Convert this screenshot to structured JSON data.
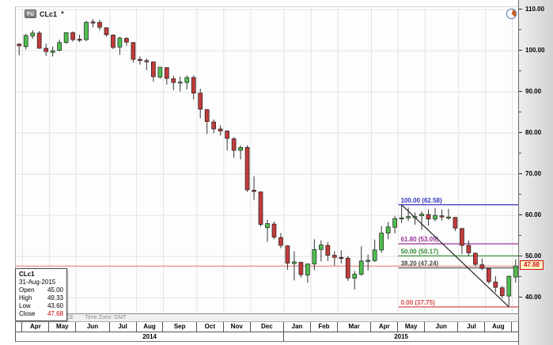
{
  "ui": {
    "instrument_badge": "Fu",
    "symbol": "CLc1",
    "dropdown_glyph": "▼",
    "footer": {
      "indicative": "INDICATIVE PRICE",
      "timezone": "Time Zone: GMT"
    },
    "tooltip": {
      "symbol": "CLc1",
      "date": "31-Aug-2015",
      "rows": [
        {
          "label": "Open",
          "value": "45.00"
        },
        {
          "label": "High",
          "value": "49.33"
        },
        {
          "label": "Low",
          "value": "43.60"
        },
        {
          "label": "Close",
          "value": "47.68"
        }
      ]
    },
    "colors": {
      "up": "#4fbf4f",
      "down": "#c23b3b",
      "candle_border": "#1e1e1e",
      "wick": "#333333",
      "grid": "#e3e3e3",
      "trendline": "#222222",
      "last_price_line": "#e87070",
      "badge_bg": "#fdf3c4",
      "badge_text": "#cc1111"
    }
  },
  "chart_data": {
    "type": "candlestick",
    "symbol": "CLc1",
    "ylim": [
      36.0,
      110.6
    ],
    "y_axis": {
      "major_ticks": [
        110,
        100,
        90,
        80,
        70,
        60,
        50,
        40
      ],
      "minor_ticks": [
        105,
        95,
        85,
        75,
        65,
        55,
        45
      ],
      "decimals": 2
    },
    "x_axis": {
      "months": [
        {
          "label": "",
          "weeks": 1
        },
        {
          "label": "Apr",
          "weeks": 4
        },
        {
          "label": "May",
          "weeks": 4
        },
        {
          "label": "Jun",
          "weeks": 5
        },
        {
          "label": "Jul",
          "weeks": 4
        },
        {
          "label": "Aug",
          "weeks": 4
        },
        {
          "label": "Sep",
          "weeks": 5
        },
        {
          "label": "Oct",
          "weeks": 4
        },
        {
          "label": "Nov",
          "weeks": 4
        },
        {
          "label": "Dec",
          "weeks": 5
        },
        {
          "label": "Jan",
          "weeks": 4
        },
        {
          "label": "Feb",
          "weeks": 4
        },
        {
          "label": "Mar",
          "weeks": 5
        },
        {
          "label": "Apr",
          "weeks": 4
        },
        {
          "label": "May",
          "weeks": 4
        },
        {
          "label": "Jun",
          "weeks": 5
        },
        {
          "label": "Jul",
          "weeks": 4
        },
        {
          "label": "Aug",
          "weeks": 4
        },
        {
          "label": "",
          "weeks": 1
        }
      ],
      "years": [
        {
          "label": "2014",
          "weeks": 40
        },
        {
          "label": "2015",
          "weeks": 35
        }
      ]
    },
    "fibonacci": [
      {
        "label": "100.00 (62.58)",
        "price": 62.58,
        "color": "#3333bb"
      },
      {
        "label": "61.80 (53.09)",
        "price": 53.09,
        "color": "#993399"
      },
      {
        "label": "50.00 (50.17)",
        "price": 50.17,
        "color": "#2e8b2e"
      },
      {
        "label": "38.20 (47.24)",
        "price": 47.24,
        "color": "#4a4a4a"
      },
      {
        "label": "0.00 (37.75)",
        "price": 37.75,
        "color": "#d94b4b"
      }
    ],
    "trendline": {
      "from_date": "04-May-2015",
      "from_price": 62.58,
      "to_date": "24-Aug-2015",
      "to_price": 37.75
    },
    "last_price": {
      "value": "47.68",
      "price": 47.68
    },
    "candles": {
      "columns": [
        "date",
        "open",
        "high",
        "low",
        "close"
      ],
      "rows": [
        [
          "31-Mar-2014",
          101.6,
          101.8,
          98.9,
          101.2
        ],
        [
          "07-Apr-2014",
          101.0,
          104.1,
          100.3,
          103.7
        ],
        [
          "14-Apr-2014",
          103.6,
          105.0,
          102.9,
          104.3
        ],
        [
          "21-Apr-2014",
          104.3,
          104.8,
          100.5,
          100.6
        ],
        [
          "28-Apr-2014",
          100.6,
          101.7,
          98.7,
          99.8
        ],
        [
          "05-May-2014",
          99.6,
          101.0,
          98.6,
          100.0
        ],
        [
          "12-May-2014",
          100.1,
          102.7,
          99.9,
          102.0
        ],
        [
          "19-May-2014",
          102.0,
          104.5,
          101.7,
          104.4
        ],
        [
          "26-May-2014",
          104.4,
          104.7,
          102.2,
          102.7
        ],
        [
          "02-Jun-2014",
          102.8,
          103.9,
          102.1,
          102.7
        ],
        [
          "09-Jun-2014",
          102.7,
          107.3,
          102.3,
          106.9
        ],
        [
          "16-Jun-2014",
          107.0,
          107.7,
          105.7,
          106.8
        ],
        [
          "23-Jun-2014",
          106.9,
          107.5,
          105.0,
          105.7
        ],
        [
          "30-Jun-2014",
          105.6,
          105.7,
          103.4,
          103.9
        ],
        [
          "07-Jul-2014",
          103.8,
          104.0,
          100.4,
          100.8
        ],
        [
          "14-Jul-2014",
          100.9,
          103.4,
          99.0,
          103.1
        ],
        [
          "21-Jul-2014",
          103.0,
          103.3,
          101.2,
          102.1
        ],
        [
          "28-Jul-2014",
          102.0,
          102.1,
          97.1,
          97.9
        ],
        [
          "04-Aug-2014",
          97.9,
          98.6,
          96.6,
          97.6
        ],
        [
          "11-Aug-2014",
          97.6,
          98.1,
          95.3,
          97.3
        ],
        [
          "18-Aug-2014",
          97.3,
          97.4,
          92.5,
          93.7
        ],
        [
          "25-Aug-2014",
          93.6,
          96.1,
          93.2,
          96.0
        ],
        [
          "01-Sep-2014",
          95.9,
          96.0,
          91.8,
          93.3
        ],
        [
          "08-Sep-2014",
          93.2,
          93.9,
          90.4,
          92.3
        ],
        [
          "15-Sep-2014",
          92.3,
          93.7,
          90.1,
          92.4
        ],
        [
          "22-Sep-2014",
          92.3,
          94.0,
          90.6,
          93.5
        ],
        [
          "29-Sep-2014",
          93.5,
          94.0,
          88.2,
          89.7
        ],
        [
          "06-Oct-2014",
          89.7,
          90.8,
          83.6,
          85.8
        ],
        [
          "13-Oct-2014",
          85.7,
          85.8,
          79.8,
          82.8
        ],
        [
          "20-Oct-2014",
          82.7,
          83.3,
          80.0,
          81.0
        ],
        [
          "27-Oct-2014",
          81.0,
          81.9,
          79.4,
          80.5
        ],
        [
          "03-Nov-2014",
          80.5,
          80.7,
          75.8,
          78.7
        ],
        [
          "10-Nov-2014",
          78.6,
          79.0,
          74.0,
          75.8
        ],
        [
          "17-Nov-2014",
          75.8,
          77.0,
          73.6,
          76.5
        ],
        [
          "24-Nov-2014",
          76.5,
          77.0,
          65.7,
          66.2
        ],
        [
          "01-Dec-2014",
          66.1,
          69.5,
          63.7,
          65.8
        ],
        [
          "08-Dec-2014",
          65.7,
          65.8,
          57.3,
          57.8
        ],
        [
          "15-Dec-2014",
          57.0,
          58.9,
          53.6,
          58.0
        ],
        [
          "22-Dec-2014",
          57.9,
          58.5,
          54.2,
          54.7
        ],
        [
          "29-Dec-2014",
          54.6,
          55.7,
          52.0,
          52.7
        ],
        [
          "05-Jan-2015",
          52.6,
          52.7,
          46.8,
          48.4
        ],
        [
          "12-Jan-2015",
          48.3,
          51.3,
          44.2,
          48.7
        ],
        [
          "19-Jan-2015",
          48.6,
          48.7,
          44.9,
          45.6
        ],
        [
          "26-Jan-2015",
          45.5,
          48.3,
          43.6,
          48.2
        ],
        [
          "02-Feb-2015",
          48.2,
          54.2,
          46.7,
          51.7
        ],
        [
          "09-Feb-2015",
          51.7,
          53.9,
          48.8,
          52.8
        ],
        [
          "16-Feb-2015",
          52.7,
          53.5,
          48.9,
          50.3
        ],
        [
          "23-Feb-2015",
          50.3,
          51.3,
          47.8,
          49.8
        ],
        [
          "02-Mar-2015",
          49.8,
          51.5,
          48.3,
          49.6
        ],
        [
          "09-Mar-2015",
          49.6,
          50.1,
          44.1,
          44.8
        ],
        [
          "16-Mar-2015",
          44.7,
          46.5,
          42.0,
          45.7
        ],
        [
          "23-Mar-2015",
          45.7,
          52.5,
          45.3,
          48.9
        ],
        [
          "30-Mar-2015",
          48.8,
          50.5,
          46.6,
          49.1
        ],
        [
          "06-Apr-2015",
          49.0,
          54.1,
          48.7,
          51.6
        ],
        [
          "13-Apr-2015",
          51.6,
          57.4,
          50.9,
          55.7
        ],
        [
          "20-Apr-2015",
          55.7,
          58.4,
          54.2,
          57.2
        ],
        [
          "27-Apr-2015",
          57.1,
          59.9,
          55.6,
          59.2
        ],
        [
          "04-May-2015",
          59.2,
          62.58,
          58.1,
          59.4
        ],
        [
          "11-May-2015",
          59.4,
          61.9,
          58.6,
          59.7
        ],
        [
          "18-May-2015",
          59.7,
          60.7,
          57.7,
          59.7
        ],
        [
          "25-May-2015",
          59.9,
          61.0,
          56.5,
          60.3
        ],
        [
          "01-Jun-2015",
          60.2,
          61.5,
          57.5,
          59.1
        ],
        [
          "08-Jun-2015",
          59.1,
          61.8,
          58.6,
          60.0
        ],
        [
          "15-Jun-2015",
          59.9,
          61.4,
          58.7,
          59.6
        ],
        [
          "22-Jun-2015",
          59.6,
          61.6,
          58.9,
          59.6
        ],
        [
          "29-Jun-2015",
          59.5,
          59.6,
          56.2,
          56.9
        ],
        [
          "06-Jul-2015",
          56.8,
          57.0,
          50.6,
          52.7
        ],
        [
          "13-Jul-2015",
          52.7,
          53.9,
          50.1,
          50.9
        ],
        [
          "20-Jul-2015",
          50.8,
          51.0,
          47.7,
          48.1
        ],
        [
          "27-Jul-2015",
          48.0,
          49.5,
          46.7,
          47.1
        ],
        [
          "03-Aug-2015",
          47.1,
          47.2,
          43.4,
          43.9
        ],
        [
          "10-Aug-2015",
          43.8,
          45.2,
          41.3,
          42.5
        ],
        [
          "17-Aug-2015",
          42.4,
          42.9,
          39.9,
          40.5
        ],
        [
          "24-Aug-2015",
          40.4,
          45.4,
          37.75,
          45.2
        ],
        [
          "31-Aug-2015",
          45.0,
          49.33,
          43.6,
          47.68
        ]
      ]
    }
  }
}
